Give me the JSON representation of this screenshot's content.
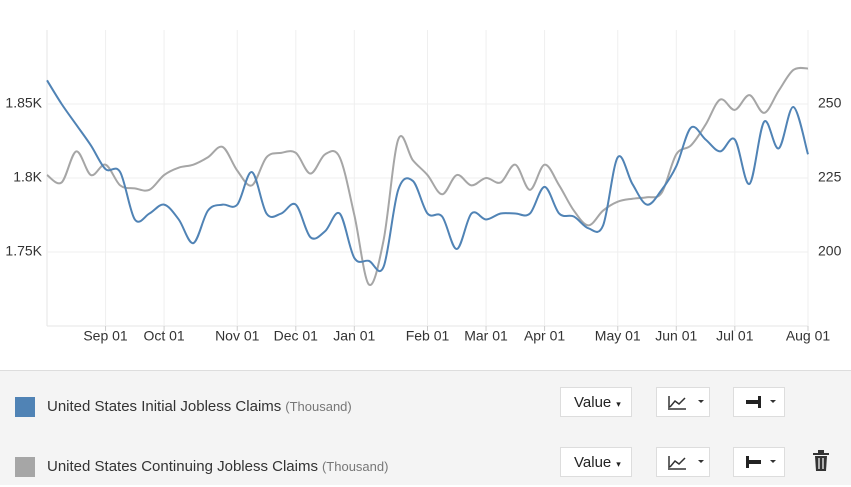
{
  "chart_data": {
    "type": "line",
    "categories": [
      null,
      null,
      null,
      null,
      "Sep 01",
      null,
      null,
      null,
      "Oct 01",
      null,
      null,
      null,
      null,
      "Nov 01",
      null,
      null,
      null,
      "Dec 01",
      null,
      null,
      null,
      "Jan 01",
      null,
      null,
      null,
      null,
      "Feb 01",
      null,
      null,
      null,
      "Mar 01",
      null,
      null,
      null,
      "Apr 01",
      null,
      null,
      null,
      null,
      "May 01",
      null,
      null,
      null,
      "Jun 01",
      null,
      null,
      null,
      "Jul 01",
      null,
      null,
      null,
      null,
      "Aug 01"
    ],
    "ylim": [
      1700,
      1900
    ],
    "yticks": [
      {
        "value": 1750,
        "label": "1.75K"
      },
      {
        "value": 1800,
        "label": "1.8K"
      },
      {
        "value": 1850,
        "label": "1.85K"
      }
    ],
    "y2lim": [
      175,
      275
    ],
    "y2ticks": [
      200,
      225,
      250
    ],
    "grid": true,
    "series": [
      {
        "name": "United States Initial Jobless Claims",
        "unit": "(Thousand)",
        "color": "#5083b5",
        "axis": "y2",
        "values": [
          258,
          250,
          243,
          236,
          228,
          227,
          211,
          213,
          216,
          211,
          203,
          214,
          216,
          216,
          227,
          213,
          213,
          216,
          205,
          207,
          213,
          198,
          197,
          195,
          221,
          224,
          213,
          212,
          201,
          213,
          211,
          213,
          213,
          213,
          222,
          213,
          212,
          208,
          209,
          232,
          223,
          216,
          221,
          229,
          242,
          238,
          234,
          238,
          223,
          244,
          235,
          249,
          233
        ]
      },
      {
        "name": "United States Continuing Jobless Claims",
        "unit": "(Thousand)",
        "color": "#a6a6a6",
        "axis": "y",
        "values": [
          1802,
          1797,
          1818,
          1802,
          1809,
          1795,
          1793,
          1792,
          1802,
          1807,
          1809,
          1814,
          1821,
          1805,
          1795,
          1814,
          1817,
          1817,
          1803,
          1816,
          1814,
          1775,
          1728,
          1758,
          1826,
          1812,
          1802,
          1789,
          1802,
          1795,
          1800,
          1797,
          1809,
          1792,
          1809,
          1795,
          1778,
          1768,
          1778,
          1784,
          1786,
          1787,
          1790,
          1816,
          1822,
          1836,
          1853,
          1846,
          1856,
          1844,
          1859,
          1873,
          1874
        ]
      }
    ]
  },
  "legend_panel": {
    "rows": [
      {
        "button": "Value"
      },
      {
        "button": "Value"
      }
    ]
  }
}
